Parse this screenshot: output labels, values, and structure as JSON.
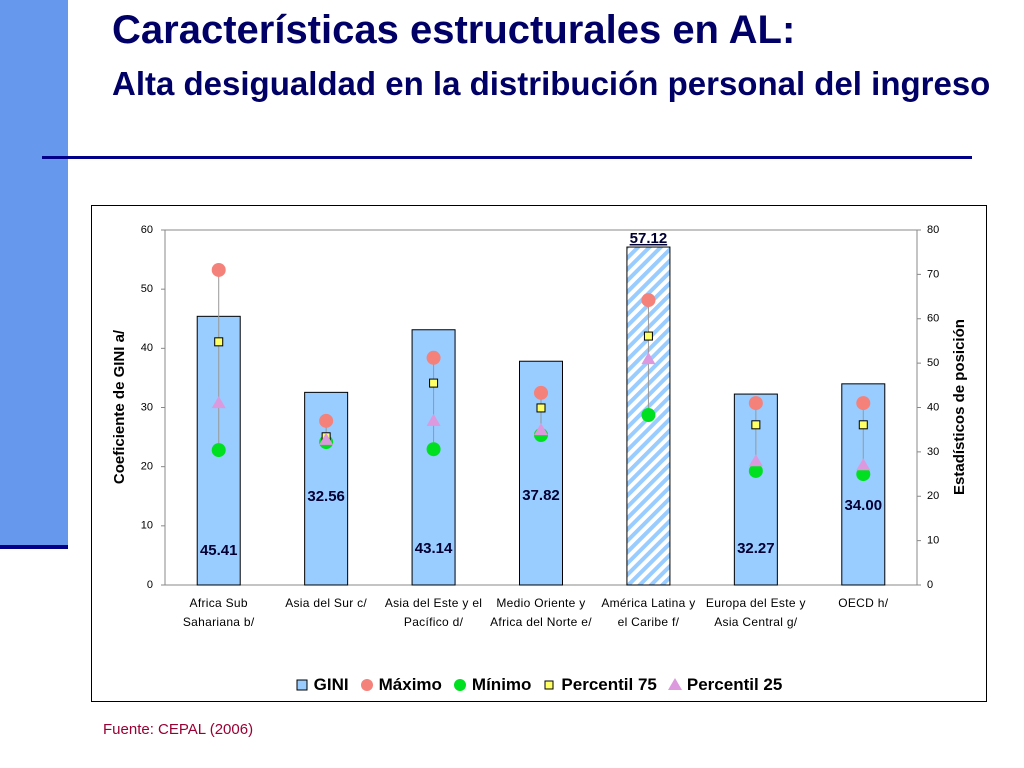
{
  "header": {
    "title": "Características estructurales en AL:",
    "subtitle": "Alta desigualdad en la distribución personal del ingreso"
  },
  "chart_data": {
    "type": "bar",
    "categories": [
      "Africa Sub Sahariana b/",
      "Asia del Sur c/",
      "Asia del Este y el Pacífico d/",
      "Medio Oriente y Africa del Norte e/",
      "América Latina y el Caribe f/",
      "Europa del Este y Asia Central g/",
      "OECD h/"
    ],
    "ylabel": "Coeficiente de GINI a/",
    "y2label": "Estadísticos de posición",
    "ylim": [
      0,
      60
    ],
    "yticks": [
      0,
      10,
      20,
      30,
      40,
      50,
      60
    ],
    "y2lim": [
      0,
      80
    ],
    "y2ticks": [
      0,
      10,
      20,
      30,
      40,
      50,
      60,
      70,
      80
    ],
    "series": [
      {
        "name": "GINI",
        "type": "bar",
        "color": "#99ccff",
        "values": [
          45.41,
          32.56,
          43.14,
          37.82,
          57.12,
          32.27,
          34
        ],
        "value_labels": [
          "45.41",
          "32.56",
          "43.14",
          "37.82",
          "57.12",
          "32.27",
          "34.00"
        ]
      },
      {
        "name": "Máximo",
        "type": "scatter",
        "marker": "circle",
        "axis": "y2",
        "color": "#f4817a",
        "values": [
          71,
          37,
          51.2,
          43.3,
          64.2,
          41,
          41
        ]
      },
      {
        "name": "Mínimo",
        "type": "scatter",
        "marker": "circle",
        "axis": "y2",
        "color": "#00e020",
        "values": [
          30.4,
          32.2,
          30.6,
          33.8,
          38.3,
          25.7,
          25
        ]
      },
      {
        "name": "Percentil 75",
        "type": "scatter",
        "marker": "square",
        "axis": "y2",
        "color": "#ffff66",
        "values": [
          54.8,
          33.4,
          45.5,
          39.9,
          56.1,
          36.1,
          36.1
        ]
      },
      {
        "name": "Percentil 25",
        "type": "scatter",
        "marker": "triangle",
        "axis": "y2",
        "color": "#dd99dd",
        "values": [
          41,
          32.7,
          37,
          34.9,
          50.9,
          27.9,
          27
        ]
      }
    ]
  },
  "footer": {
    "source": "Fuente: CEPAL (2006)"
  }
}
